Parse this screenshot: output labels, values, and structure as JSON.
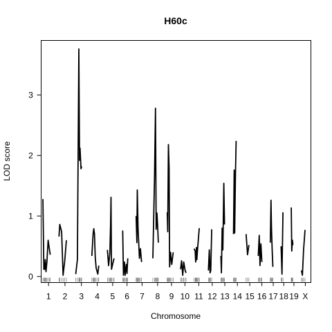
{
  "chart_data": {
    "type": "line",
    "title": "H60c",
    "xlabel": "Chromosome",
    "ylabel": "LOD score",
    "ylim": [
      -0.1,
      3.9
    ],
    "yticks": [
      0,
      1,
      2,
      3
    ],
    "grid": false,
    "legend": "none",
    "line_color": "#000000",
    "chromosomes": [
      {
        "name": "1",
        "length": 95,
        "points": [
          [
            0,
            1.28
          ],
          [
            8,
            0.12
          ],
          [
            14,
            0.12
          ],
          [
            20,
            0.28
          ],
          [
            26,
            0.08
          ],
          [
            34,
            0.24
          ],
          [
            44,
            0.6
          ],
          [
            54,
            0.46
          ],
          [
            62,
            0.36
          ]
        ]
      },
      {
        "name": "2",
        "length": 100,
        "points": [
          [
            0,
            0.66
          ],
          [
            6,
            0.86
          ],
          [
            22,
            0.74
          ],
          [
            34,
            0.02
          ],
          [
            48,
            0.26
          ],
          [
            62,
            0.6
          ]
        ]
      },
      {
        "name": "3",
        "length": 95,
        "points": [
          [
            0,
            0.04
          ],
          [
            14,
            0.28
          ],
          [
            26,
            3.76
          ],
          [
            32,
            1.92
          ],
          [
            36,
            2.12
          ],
          [
            44,
            1.78
          ],
          [
            50,
            1.82
          ]
        ]
      },
      {
        "name": "4",
        "length": 90,
        "points": [
          [
            0,
            0.34
          ],
          [
            10,
            0.7
          ],
          [
            16,
            0.79
          ],
          [
            22,
            0.7
          ],
          [
            28,
            0.32
          ],
          [
            36,
            0.14
          ],
          [
            50,
            0.04
          ],
          [
            58,
            0.18
          ]
        ]
      },
      {
        "name": "5",
        "length": 88,
        "points": [
          [
            0,
            0.44
          ],
          [
            10,
            0.18
          ],
          [
            20,
            0.38
          ],
          [
            26,
            0.82
          ],
          [
            30,
            1.31
          ],
          [
            34,
            0.12
          ],
          [
            46,
            0.22
          ],
          [
            56,
            0.3
          ]
        ]
      },
      {
        "name": "6",
        "length": 72,
        "points": [
          [
            0,
            0.76
          ],
          [
            6,
            0.02
          ],
          [
            14,
            0.24
          ],
          [
            20,
            0.02
          ],
          [
            30,
            0.2
          ],
          [
            36,
            0.05
          ],
          [
            42,
            0.3
          ]
        ]
      },
      {
        "name": "7",
        "length": 100,
        "points": [
          [
            0,
            1.0
          ],
          [
            6,
            0.56
          ],
          [
            10,
            1.43
          ],
          [
            16,
            0.8
          ],
          [
            20,
            0.62
          ],
          [
            28,
            0.3
          ],
          [
            36,
            0.46
          ],
          [
            46,
            0.24
          ]
        ]
      },
      {
        "name": "8",
        "length": 80,
        "points": [
          [
            0,
            0.3
          ],
          [
            14,
            1.64
          ],
          [
            22,
            2.78
          ],
          [
            28,
            0.78
          ],
          [
            34,
            1.05
          ],
          [
            40,
            0.84
          ],
          [
            46,
            0.56
          ]
        ]
      },
      {
        "name": "9",
        "length": 72,
        "points": [
          [
            0,
            1.06
          ],
          [
            4,
            0.74
          ],
          [
            10,
            2.18
          ],
          [
            16,
            1.78
          ],
          [
            20,
            0.16
          ],
          [
            28,
            0.4
          ],
          [
            38,
            0.2
          ],
          [
            50,
            0.4
          ]
        ]
      },
      {
        "name": "10",
        "length": 72,
        "points": [
          [
            0,
            0.12
          ],
          [
            8,
            0.26
          ],
          [
            18,
            0.02
          ],
          [
            26,
            0.24
          ],
          [
            38,
            0.1
          ],
          [
            46,
            0.06
          ]
        ]
      },
      {
        "name": "11",
        "length": 80,
        "points": [
          [
            0,
            0.46
          ],
          [
            10,
            0.42
          ],
          [
            14,
            0.24
          ],
          [
            20,
            0.48
          ],
          [
            24,
            0.28
          ],
          [
            30,
            0.46
          ],
          [
            38,
            0.66
          ],
          [
            44,
            0.8
          ]
        ]
      },
      {
        "name": "12",
        "length": 65,
        "points": [
          [
            0,
            0.1
          ],
          [
            8,
            0.44
          ],
          [
            14,
            0.06
          ],
          [
            20,
            0.1
          ],
          [
            28,
            0.78
          ]
        ]
      },
      {
        "name": "13",
        "length": 65,
        "points": [
          [
            0,
            0.34
          ],
          [
            4,
            0.06
          ],
          [
            10,
            0.8
          ],
          [
            16,
            0.44
          ],
          [
            24,
            1.54
          ],
          [
            30,
            0.86
          ]
        ]
      },
      {
        "name": "14",
        "length": 65,
        "points": [
          [
            0,
            0.7
          ],
          [
            6,
            1.76
          ],
          [
            10,
            0.72
          ],
          [
            16,
            1.68
          ],
          [
            22,
            2.24
          ]
        ]
      },
      {
        "name": "15",
        "length": 62,
        "points": [
          [
            0,
            0.7
          ],
          [
            12,
            0.36
          ],
          [
            24,
            0.52
          ]
        ]
      },
      {
        "name": "16",
        "length": 60,
        "points": [
          [
            0,
            0.34
          ],
          [
            8,
            0.68
          ],
          [
            14,
            0.18
          ],
          [
            22,
            0.54
          ],
          [
            30,
            0.24
          ]
        ]
      },
      {
        "name": "17",
        "length": 50,
        "points": [
          [
            0,
            0.56
          ],
          [
            6,
            1.26
          ],
          [
            10,
            0.8
          ],
          [
            16,
            0.44
          ],
          [
            22,
            0.16
          ]
        ]
      },
      {
        "name": "18",
        "length": 45,
        "points": [
          [
            0,
            0.5
          ],
          [
            8,
            0.04
          ],
          [
            16,
            1.06
          ]
        ]
      },
      {
        "name": "19",
        "length": 45,
        "points": [
          [
            0,
            1.14
          ],
          [
            4,
            0.42
          ],
          [
            10,
            0.6
          ],
          [
            14,
            0.52
          ]
        ]
      },
      {
        "name": "X",
        "length": 65,
        "points": [
          [
            0,
            0.1
          ],
          [
            8,
            0.02
          ],
          [
            18,
            0.44
          ],
          [
            30,
            0.77
          ]
        ]
      }
    ]
  }
}
